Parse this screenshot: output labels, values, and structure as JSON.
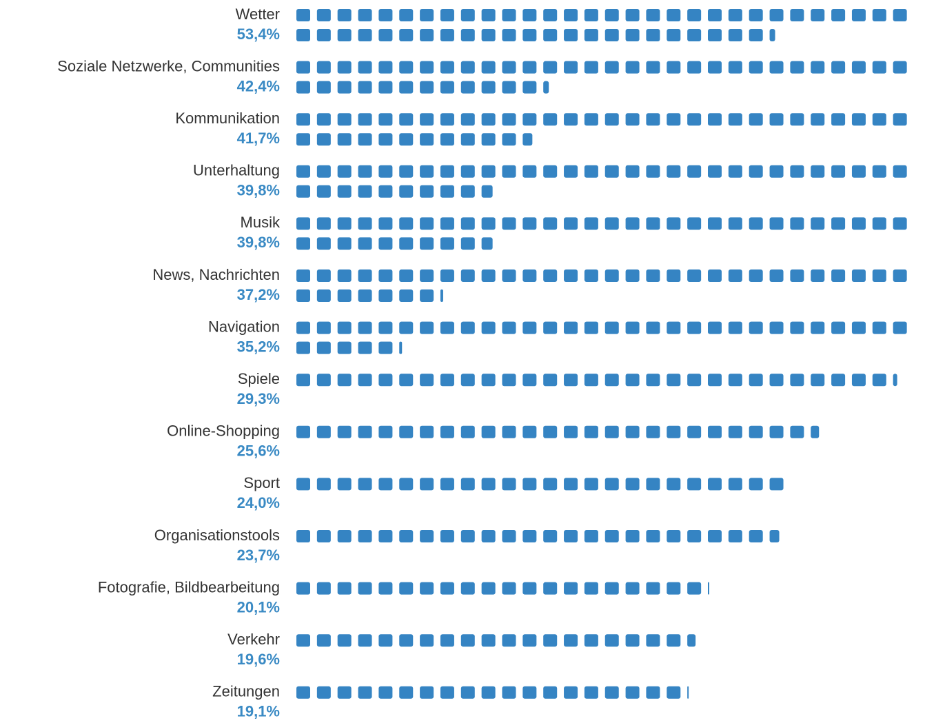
{
  "chart_data": {
    "type": "bar",
    "categories": [
      "Wetter",
      "Soziale Netzwerke, Communities",
      "Kommunikation",
      "Unterhaltung",
      "Musik",
      "News, Nachrichten",
      "Navigation",
      "Spiele",
      "Online-Shopping",
      "Sport",
      "Organisationstools",
      "Fotografie, Bildbearbeitung",
      "Verkehr",
      "Zeitungen"
    ],
    "values": [
      53.4,
      42.4,
      41.7,
      39.8,
      39.8,
      37.2,
      35.2,
      29.3,
      25.6,
      24.0,
      23.7,
      20.1,
      19.6,
      19.1
    ],
    "value_labels": [
      "53,4%",
      "42,4%",
      "41,7%",
      "39,8%",
      "39,8%",
      "37,2%",
      "35,2%",
      "29,3%",
      "25,6%",
      "24,0%",
      "23,7%",
      "20,1%",
      "19,6%",
      "19,1%"
    ],
    "color": "#3584c3"
  }
}
